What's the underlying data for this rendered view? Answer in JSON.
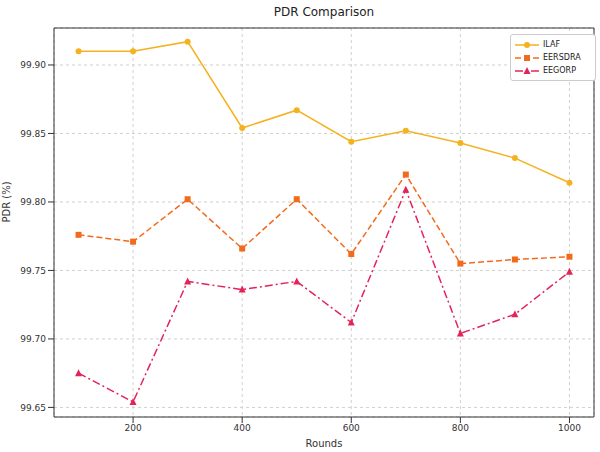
{
  "chart_data": {
    "type": "line",
    "title": "PDR Comparison",
    "x_label": "Rounds",
    "y_label": "PDR (%)",
    "x": [
      100,
      200,
      300,
      400,
      500,
      600,
      700,
      800,
      900,
      1000
    ],
    "series": [
      {
        "name": "ILAF",
        "color": "#f5b21f",
        "marker": "circle",
        "line_style": "solid",
        "values": [
          99.91,
          99.91,
          99.917,
          99.854,
          99.867,
          99.844,
          99.852,
          99.843,
          99.832,
          99.814
        ]
      },
      {
        "name": "EERSDRA",
        "color": "#f26b1d",
        "marker": "square",
        "line_style": "dashed",
        "values": [
          99.776,
          99.771,
          99.802,
          99.766,
          99.802,
          99.762,
          99.82,
          99.755,
          99.758,
          99.76
        ]
      },
      {
        "name": "EEGORP",
        "color": "#e3245a",
        "marker": "triangle",
        "line_style": "dashdot",
        "values": [
          99.675,
          99.654,
          99.742,
          99.736,
          99.742,
          99.712,
          99.809,
          99.704,
          99.718,
          99.749
        ]
      }
    ],
    "xlim": [
      55,
      1045
    ],
    "xticks": [
      200,
      400,
      600,
      800,
      1000
    ],
    "ylim": [
      99.643,
      99.927
    ],
    "yticks": [
      99.65,
      {
        "value": 99.7,
        "label": "99.70"
      },
      99.75,
      {
        "value": 99.8,
        "label": "99.80"
      },
      99.85,
      {
        "value": 99.9,
        "label": "99.90"
      }
    ],
    "grid": true,
    "legend": "upper right"
  }
}
